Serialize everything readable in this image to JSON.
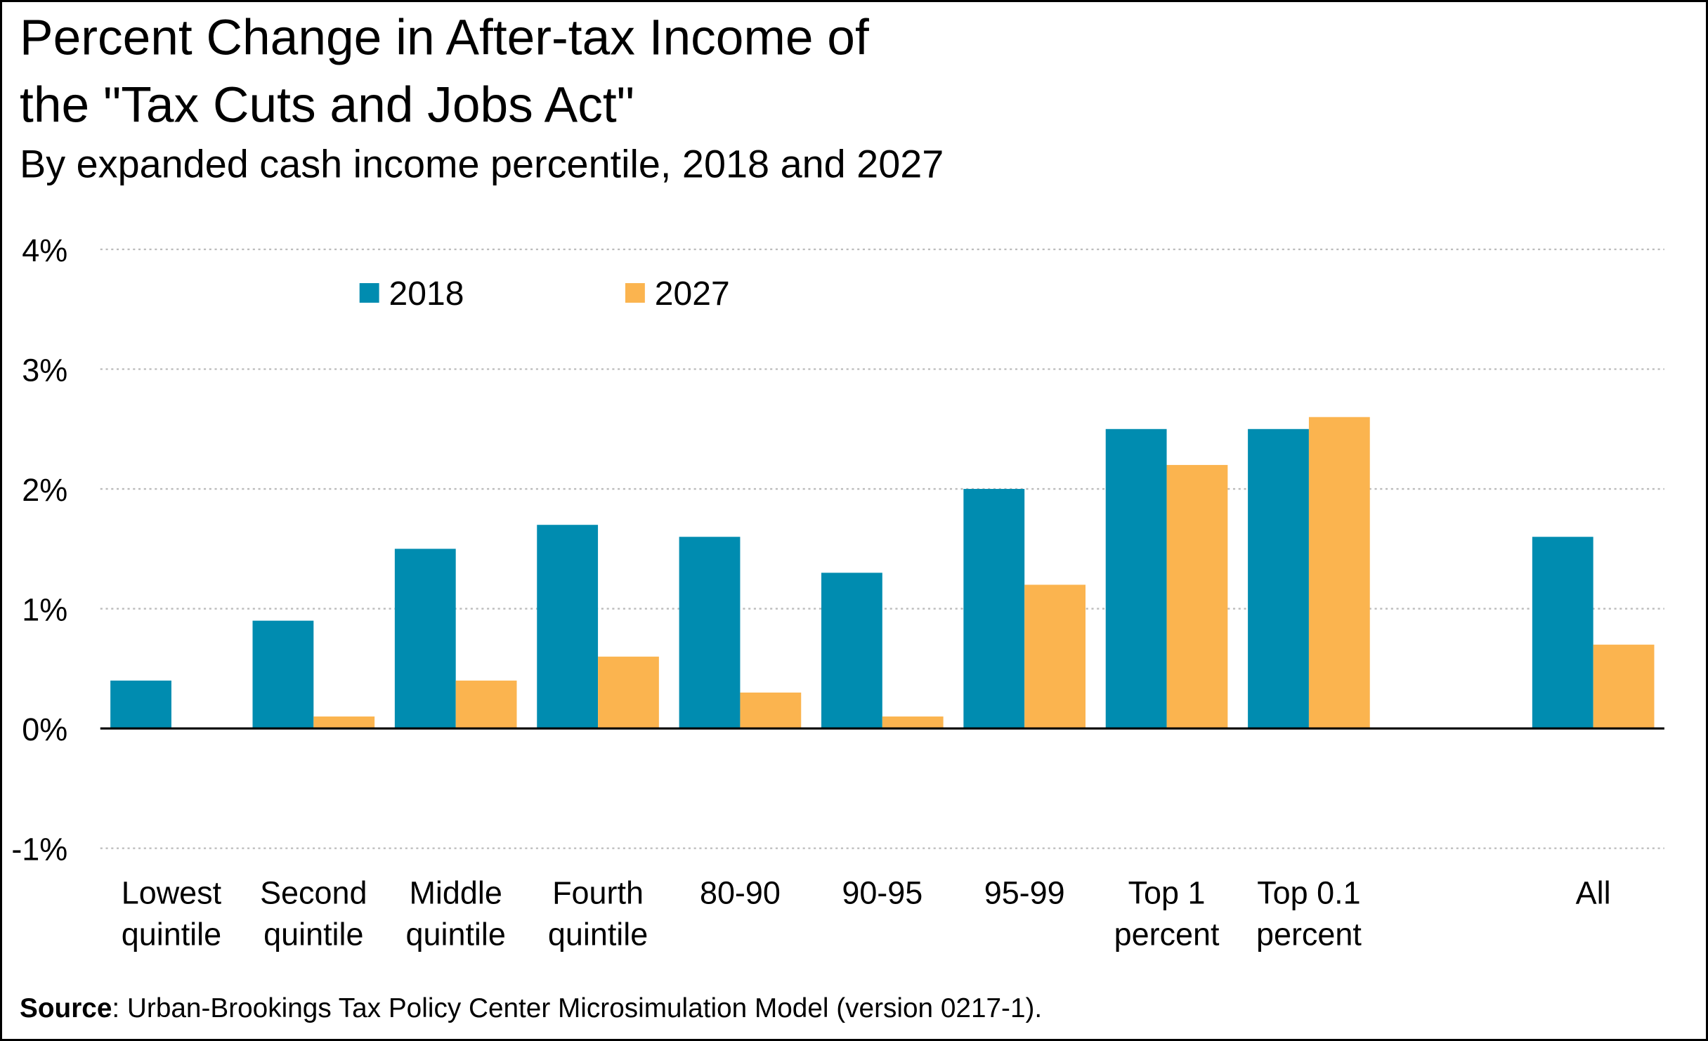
{
  "chart_data": {
    "type": "bar",
    "title_line1": "Percent Change in After-tax Income of",
    "title_line2": "the \"Tax Cuts and Jobs Act\"",
    "subtitle": "By expanded cash income percentile, 2018 and 2027",
    "categories": [
      [
        "Lowest",
        "quintile"
      ],
      [
        "Second",
        "quintile"
      ],
      [
        "Middle",
        "quintile"
      ],
      [
        "Fourth",
        "quintile"
      ],
      [
        "80-90"
      ],
      [
        "90-95"
      ],
      [
        "95-99"
      ],
      [
        "Top 1",
        "percent"
      ],
      [
        "Top 0.1",
        "percent"
      ],
      [
        "All"
      ]
    ],
    "series": [
      {
        "name": "2018",
        "color": "#008CB0",
        "values": [
          0.4,
          0.9,
          1.5,
          1.7,
          1.6,
          1.3,
          2.0,
          2.5,
          2.5,
          1.6
        ]
      },
      {
        "name": "2027",
        "color": "#FBB44F",
        "values": [
          0.0,
          0.1,
          0.4,
          0.6,
          0.3,
          0.1,
          1.2,
          2.2,
          2.6,
          0.7
        ]
      }
    ],
    "yticks": [
      -1,
      0,
      1,
      2,
      3,
      4
    ],
    "ytick_labels": [
      "-1%",
      "0%",
      "1%",
      "2%",
      "3%",
      "4%"
    ],
    "ylim": [
      -1,
      4
    ],
    "xlabel": "",
    "ylabel": "",
    "grid": true,
    "legend_position": "top-left",
    "source_label": "Source",
    "source_text": ": Urban-Brookings Tax Policy Center Microsimulation Model (version 0217-1)."
  }
}
